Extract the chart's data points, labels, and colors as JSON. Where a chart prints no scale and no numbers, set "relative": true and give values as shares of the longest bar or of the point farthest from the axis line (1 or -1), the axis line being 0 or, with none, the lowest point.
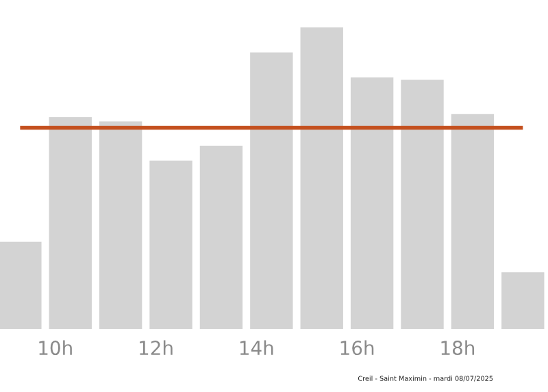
{
  "chart_data": {
    "type": "bar",
    "relative": true,
    "x": [
      9.3,
      10.3,
      11.3,
      12.3,
      13.3,
      14.3,
      15.3,
      16.3,
      17.3,
      18.3,
      19.3
    ],
    "values": [
      0.289,
      0.702,
      0.688,
      0.558,
      0.607,
      0.917,
      1,
      0.834,
      0.826,
      0.713,
      0.188
    ],
    "color": "#d3d3d3",
    "xlim": [
      8.9,
      19.8
    ],
    "xticks": [
      {
        "value": 10,
        "label": "10h"
      },
      {
        "value": 12,
        "label": "12h"
      },
      {
        "value": 14,
        "label": "14h"
      },
      {
        "value": 16,
        "label": "16h"
      },
      {
        "value": 18,
        "label": "18h"
      }
    ],
    "ref_lines": [
      {
        "axis": "y",
        "value": 0.667,
        "color": "#c4501e"
      }
    ],
    "grid": false,
    "legend": false,
    "annotations": [
      "Creil - Saint Maximin - mardi 08/07/2025"
    ]
  }
}
